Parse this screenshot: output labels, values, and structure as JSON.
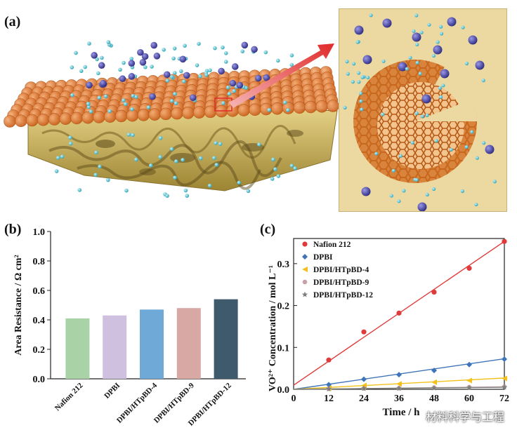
{
  "panels": {
    "a": "(a)",
    "b": "(b)",
    "c": "(c)"
  },
  "watermark": "材料科学与工程",
  "colors": {
    "membrane_orange": "#e07a2a",
    "substrate_gold": "#c9b25a",
    "ion_blue": "#3d3a9a",
    "ion_cyan": "#5fc9d6",
    "arrow_red": "#e03a3a",
    "inset_bg": "#ecd9a2"
  },
  "chart_data": [
    {
      "type": "bar",
      "panel": "(b)",
      "categories": [
        "Nafion 212",
        "DPBI",
        "DPBI/HTpBD-4",
        "DPBI/HTpBD-9",
        "DPBI/HTpBD-12"
      ],
      "values": [
        0.41,
        0.43,
        0.47,
        0.48,
        0.54
      ],
      "colors": [
        "#a9d3a6",
        "#cfc0e0",
        "#6fa9d8",
        "#d8a8a4",
        "#3e5a6c"
      ],
      "ylabel": "Area Resistance / Ω cm²",
      "ylim": [
        0.0,
        1.0
      ],
      "yticks": [
        "0.0",
        "0.2",
        "0.4",
        "0.6",
        "0.8",
        "1.0"
      ]
    },
    {
      "type": "scatter",
      "panel": "(c)",
      "xlabel": "Time / h",
      "ylabel": "VO²⁺ Concentration / mol L⁻¹",
      "xlim": [
        0,
        72
      ],
      "ylim": [
        0,
        0.36
      ],
      "xticks": [
        "0",
        "12",
        "24",
        "36",
        "48",
        "60",
        "72"
      ],
      "yticks": [
        "0.0",
        "0.1",
        "0.2",
        "0.3"
      ],
      "legend_position": "top-left",
      "series": [
        {
          "name": "Nafion 212",
          "marker": "circle",
          "color": "#e03a3a",
          "x": [
            12,
            24,
            36,
            48,
            60,
            72
          ],
          "y": [
            0.07,
            0.137,
            0.182,
            0.232,
            0.289,
            0.353
          ],
          "fit": [
            0.01,
            0.353
          ]
        },
        {
          "name": "DPBI",
          "marker": "diamond",
          "color": "#3f74b8",
          "x": [
            12,
            24,
            36,
            48,
            60,
            72
          ],
          "y": [
            0.011,
            0.024,
            0.035,
            0.045,
            0.059,
            0.072
          ],
          "fit": [
            0.0,
            0.073
          ]
        },
        {
          "name": "DPBI/HTpBD-4",
          "marker": "triangle-left",
          "color": "#f2c21a",
          "x": [
            12,
            24,
            36,
            48,
            60,
            72
          ],
          "y": [
            0.003,
            0.009,
            0.013,
            0.017,
            0.021,
            0.026
          ],
          "fit": [
            0.0,
            0.027
          ]
        },
        {
          "name": "DPBI/HTpBD-9",
          "marker": "hexagon",
          "color": "#c8a2a8",
          "x": [
            12,
            24,
            36,
            48,
            60,
            72
          ],
          "y": [
            0.001,
            0.002,
            0.003,
            0.004,
            0.005,
            0.006
          ],
          "fit": [
            0.0,
            0.006
          ]
        },
        {
          "name": "DPBI/HTpBD-12",
          "marker": "star",
          "color": "#7a7f7a",
          "x": [
            12,
            24,
            36,
            48,
            60,
            72
          ],
          "y": [
            0.001,
            0.002,
            0.002,
            0.003,
            0.004,
            0.005
          ],
          "fit": [
            0.0,
            0.005
          ]
        }
      ]
    }
  ]
}
